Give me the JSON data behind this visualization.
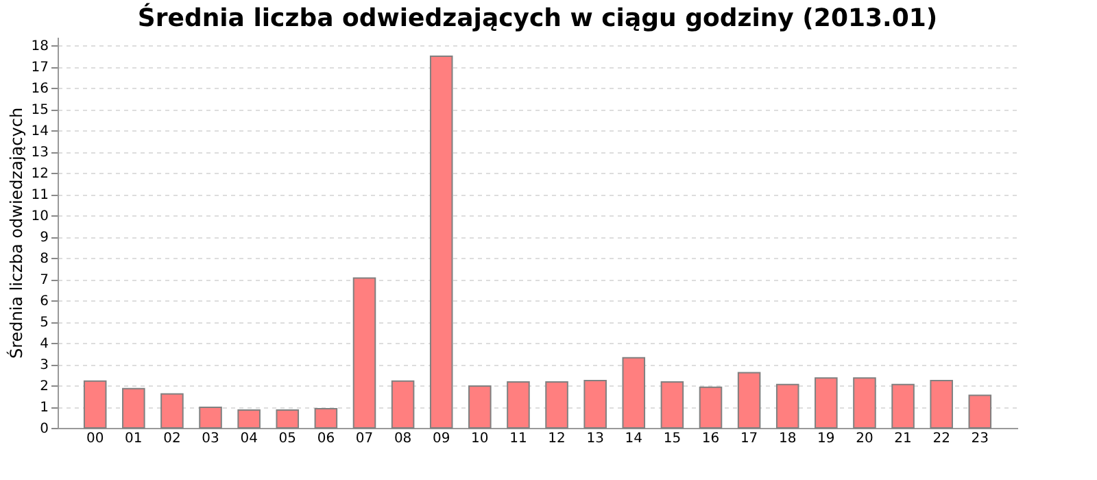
{
  "chart_data": {
    "type": "bar",
    "title": "Średnia liczba odwiedzających w ciągu godziny (2013.01)",
    "ylabel": "Średnia liczba odwiedzających",
    "categories": [
      "00",
      "01",
      "02",
      "03",
      "04",
      "05",
      "06",
      "07",
      "08",
      "09",
      "10",
      "11",
      "12",
      "13",
      "14",
      "15",
      "16",
      "17",
      "18",
      "19",
      "20",
      "21",
      "22",
      "23"
    ],
    "values": [
      2.2,
      1.85,
      1.6,
      0.97,
      0.84,
      0.84,
      0.9,
      7.05,
      2.2,
      17.5,
      1.97,
      2.16,
      2.16,
      2.23,
      3.3,
      2.16,
      1.91,
      2.6,
      2.04,
      2.35,
      2.35,
      2.04,
      2.23,
      1.53
    ],
    "color": "#ff7f7f",
    "ylim": [
      0,
      18.4
    ],
    "yticks": [
      0,
      1,
      2,
      3,
      4,
      5,
      6,
      7,
      8,
      9,
      10,
      11,
      12,
      13,
      14,
      15,
      16,
      17,
      18
    ],
    "grid": "y"
  }
}
